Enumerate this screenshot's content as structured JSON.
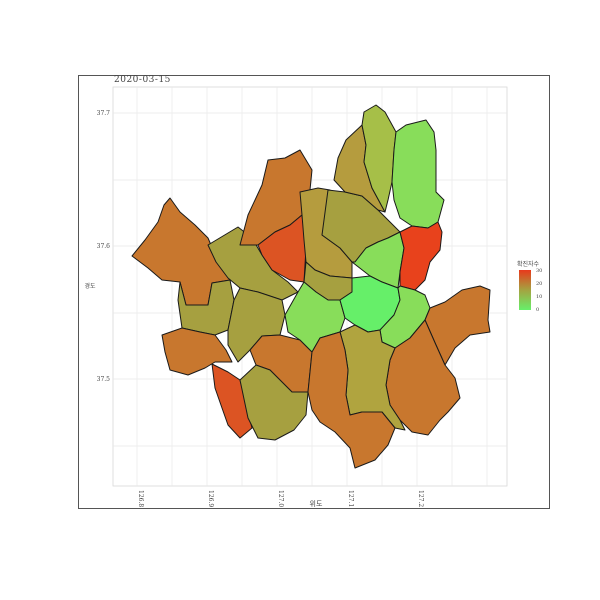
{
  "map": {
    "title": "2020-03-15",
    "xlabel": "위도",
    "ylabel": "경도",
    "x_ticks": [
      "126.8",
      "126.9",
      "127.0",
      "127.1",
      "127.2"
    ],
    "y_ticks": [
      "37.7",
      "37.6",
      "37.5"
    ],
    "legend": {
      "title": "확진자수",
      "ticks": [
        "30",
        "20",
        "10",
        "0"
      ],
      "min": 0,
      "max": 30,
      "colors": {
        "high": "#e8391c",
        "mid": "#a4a341",
        "low": "#66f06a"
      }
    },
    "border_color": "#1a1a1a",
    "grid_color": "#e8e8e8"
  }
}
